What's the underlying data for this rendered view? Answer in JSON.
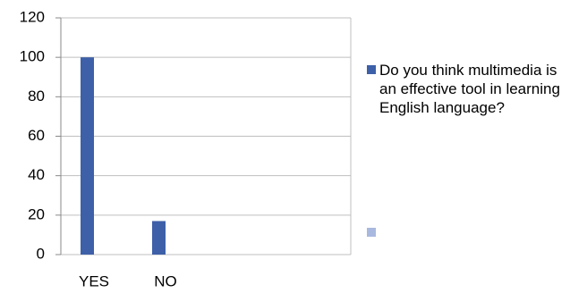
{
  "chart_data": {
    "type": "bar",
    "categories": [
      "YES",
      "NO",
      null,
      null
    ],
    "series": [
      {
        "name": "Do you think multimedia is an effective tool in learning English language?",
        "color": "#3d60a8",
        "values": [
          100,
          17,
          null,
          null
        ]
      },
      {
        "color": "#a9b8df",
        "values": [
          null,
          null,
          null,
          null
        ]
      }
    ],
    "ylim": [
      0,
      120
    ],
    "yticks": [
      0,
      20,
      40,
      60,
      80,
      100,
      120
    ],
    "grid": true,
    "legend": "right"
  }
}
